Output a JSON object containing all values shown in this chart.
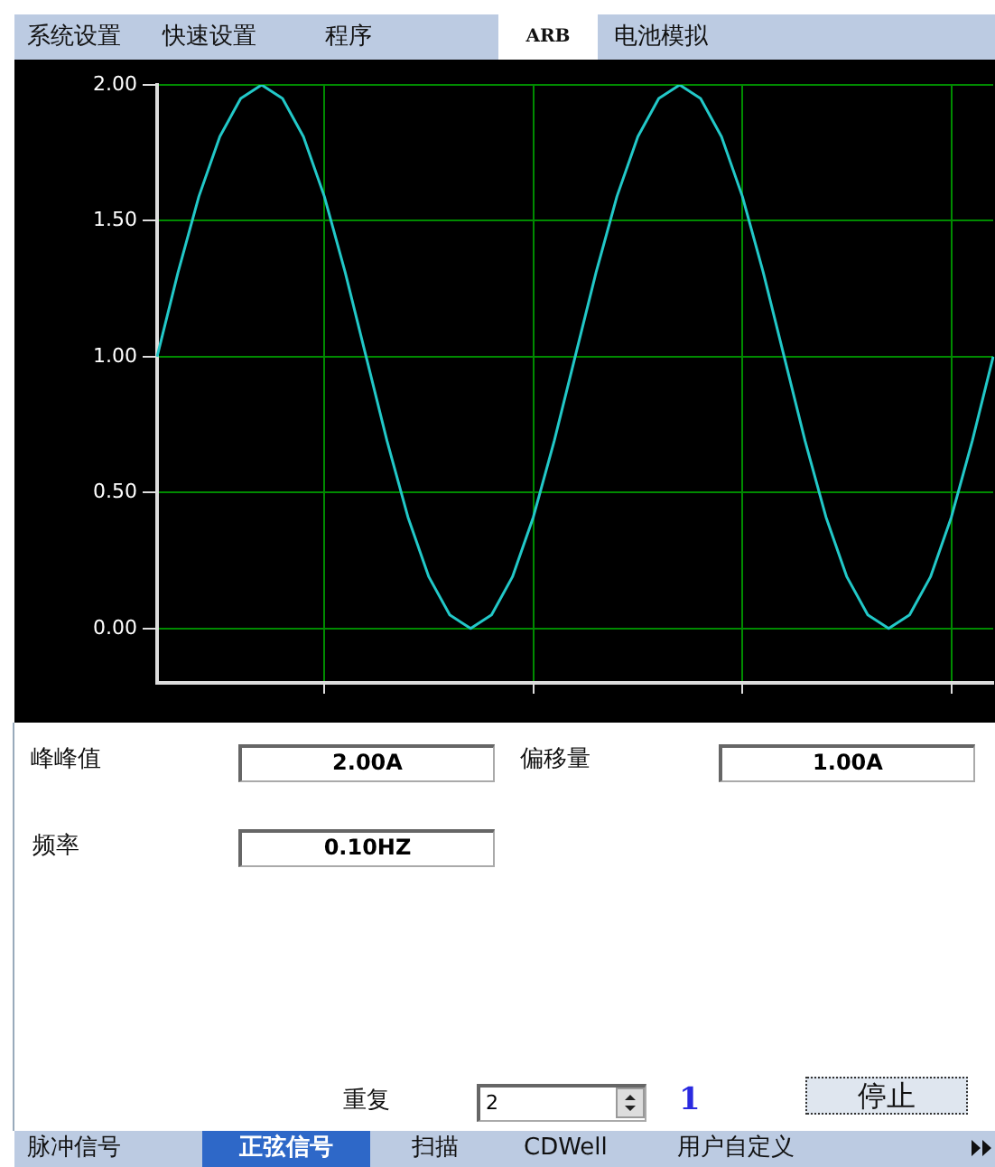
{
  "chart_data": {
    "type": "line",
    "categories": [
      null,
      null,
      null,
      null,
      null,
      null,
      null,
      null,
      null,
      null,
      null,
      null,
      null,
      null,
      null,
      null,
      null,
      null,
      null,
      null,
      null,
      null,
      null,
      null,
      null,
      null,
      null,
      null,
      null,
      null,
      null,
      null,
      null,
      null,
      null,
      null,
      null,
      null,
      null,
      null,
      null
    ],
    "series": [
      {
        "color": "#22c8c8",
        "values": [
          1.0,
          1.31,
          1.59,
          1.81,
          1.95,
          2.0,
          1.95,
          1.81,
          1.59,
          1.31,
          1.0,
          0.69,
          0.41,
          0.19,
          0.05,
          0.0,
          0.05,
          0.19,
          0.41,
          0.69,
          1.0,
          1.31,
          1.59,
          1.81,
          1.95,
          2.0,
          1.95,
          1.81,
          1.59,
          1.31,
          1.0,
          0.69,
          0.41,
          0.19,
          0.05,
          0.0,
          0.05,
          0.19,
          0.41,
          0.69,
          1.0
        ]
      }
    ],
    "ylim": [
      -0.2,
      2.0
    ],
    "yticks": [
      {
        "value": 0,
        "label": "0.00"
      },
      {
        "value": 0.5,
        "label": "0.50"
      },
      {
        "value": 1,
        "label": "1.00"
      },
      {
        "value": 1.5,
        "label": "1.50"
      },
      {
        "value": 2,
        "label": "2.00"
      }
    ],
    "tick_labels": "y",
    "grid": true,
    "annotations": [
      "系统设置",
      "快速设置",
      "程序",
      "ARB",
      "电池模拟",
      "峰峰值",
      "2.00A",
      "偏移量",
      "1.00A",
      "频率",
      "0.10HZ",
      "重复",
      "2",
      "1",
      "停止",
      "脉冲信号",
      "正弦信号",
      "扫描",
      "CDWell",
      "用户自定义"
    ]
  }
}
